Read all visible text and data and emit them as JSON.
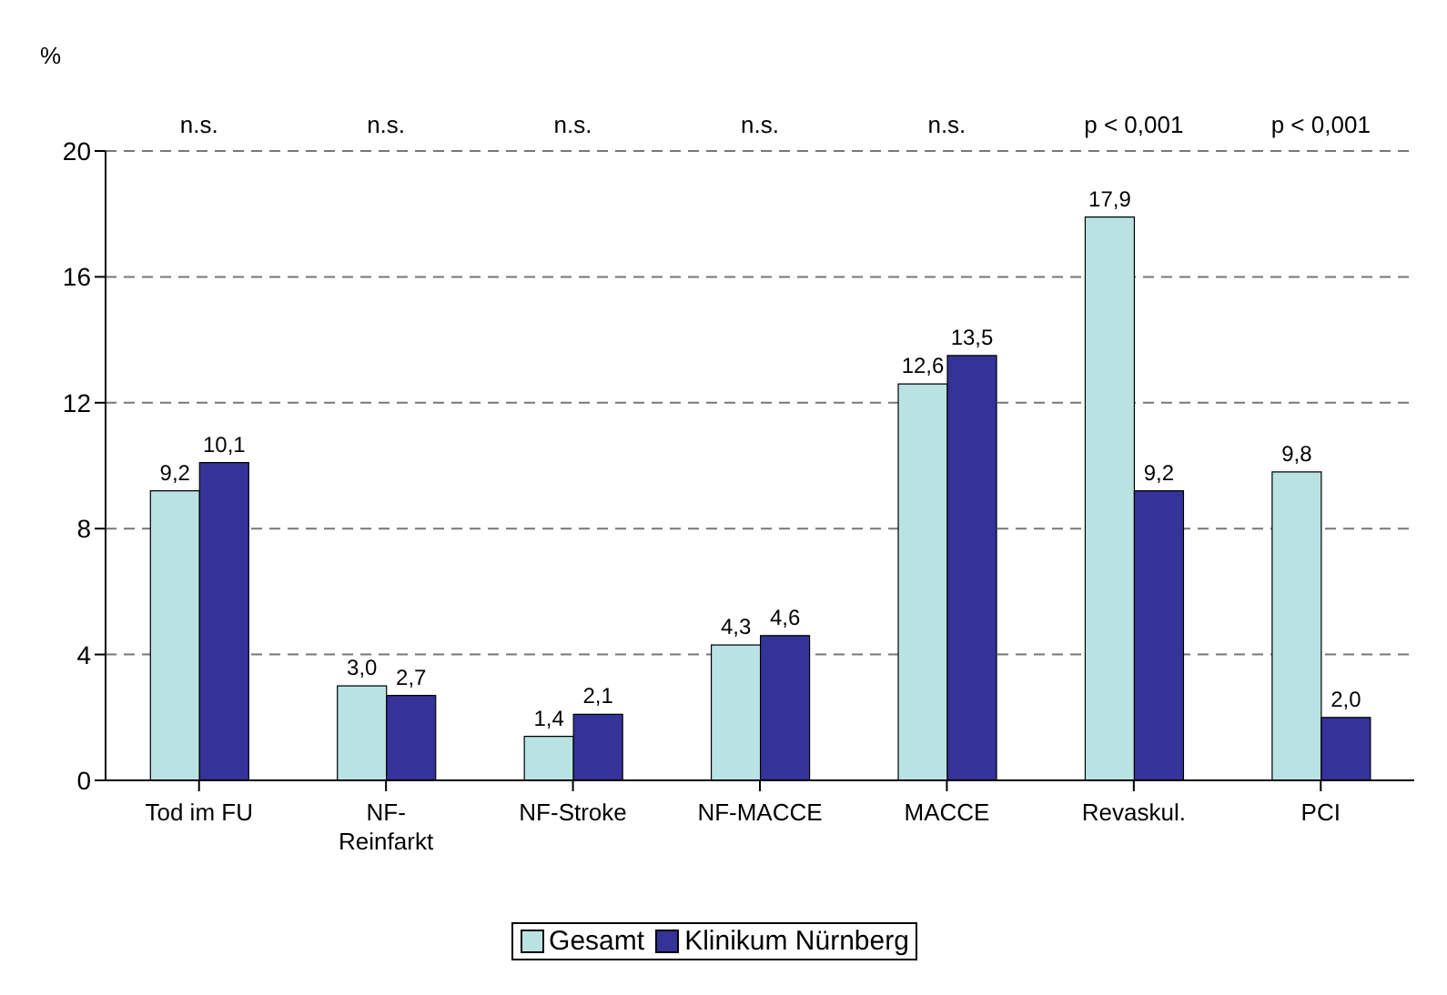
{
  "chart_data": {
    "type": "bar",
    "ylabel": "%",
    "categories": [
      "Tod im FU",
      "NF-\nReinfarkt",
      "NF-Stroke",
      "NF-MACCE",
      "MACCE",
      "Revaskul.",
      "PCI"
    ],
    "series": [
      {
        "name": "Gesamt",
        "color": "#b9e3e3",
        "values": [
          9.2,
          3.0,
          1.4,
          4.3,
          12.6,
          17.9,
          9.8
        ],
        "value_labels": [
          "9,2",
          "3,0",
          "1,4",
          "4,3",
          "12,6",
          "17,9",
          "9,8"
        ]
      },
      {
        "name": "Klinikum Nürnberg",
        "color": "#333399",
        "values": [
          10.1,
          2.7,
          2.1,
          4.6,
          13.5,
          9.2,
          2.0
        ],
        "value_labels": [
          "10,1",
          "2,7",
          "2,1",
          "4,6",
          "13,5",
          "9,2",
          "2,0"
        ]
      }
    ],
    "annotations": [
      "n.s.",
      "n.s.",
      "n.s.",
      "n.s.",
      "n.s.",
      "p < 0,001",
      "p < 0,001"
    ],
    "ylim": [
      0,
      20
    ],
    "yticks": [
      0,
      4,
      8,
      12,
      16,
      20
    ],
    "grid": "y",
    "legend": "bottom"
  }
}
